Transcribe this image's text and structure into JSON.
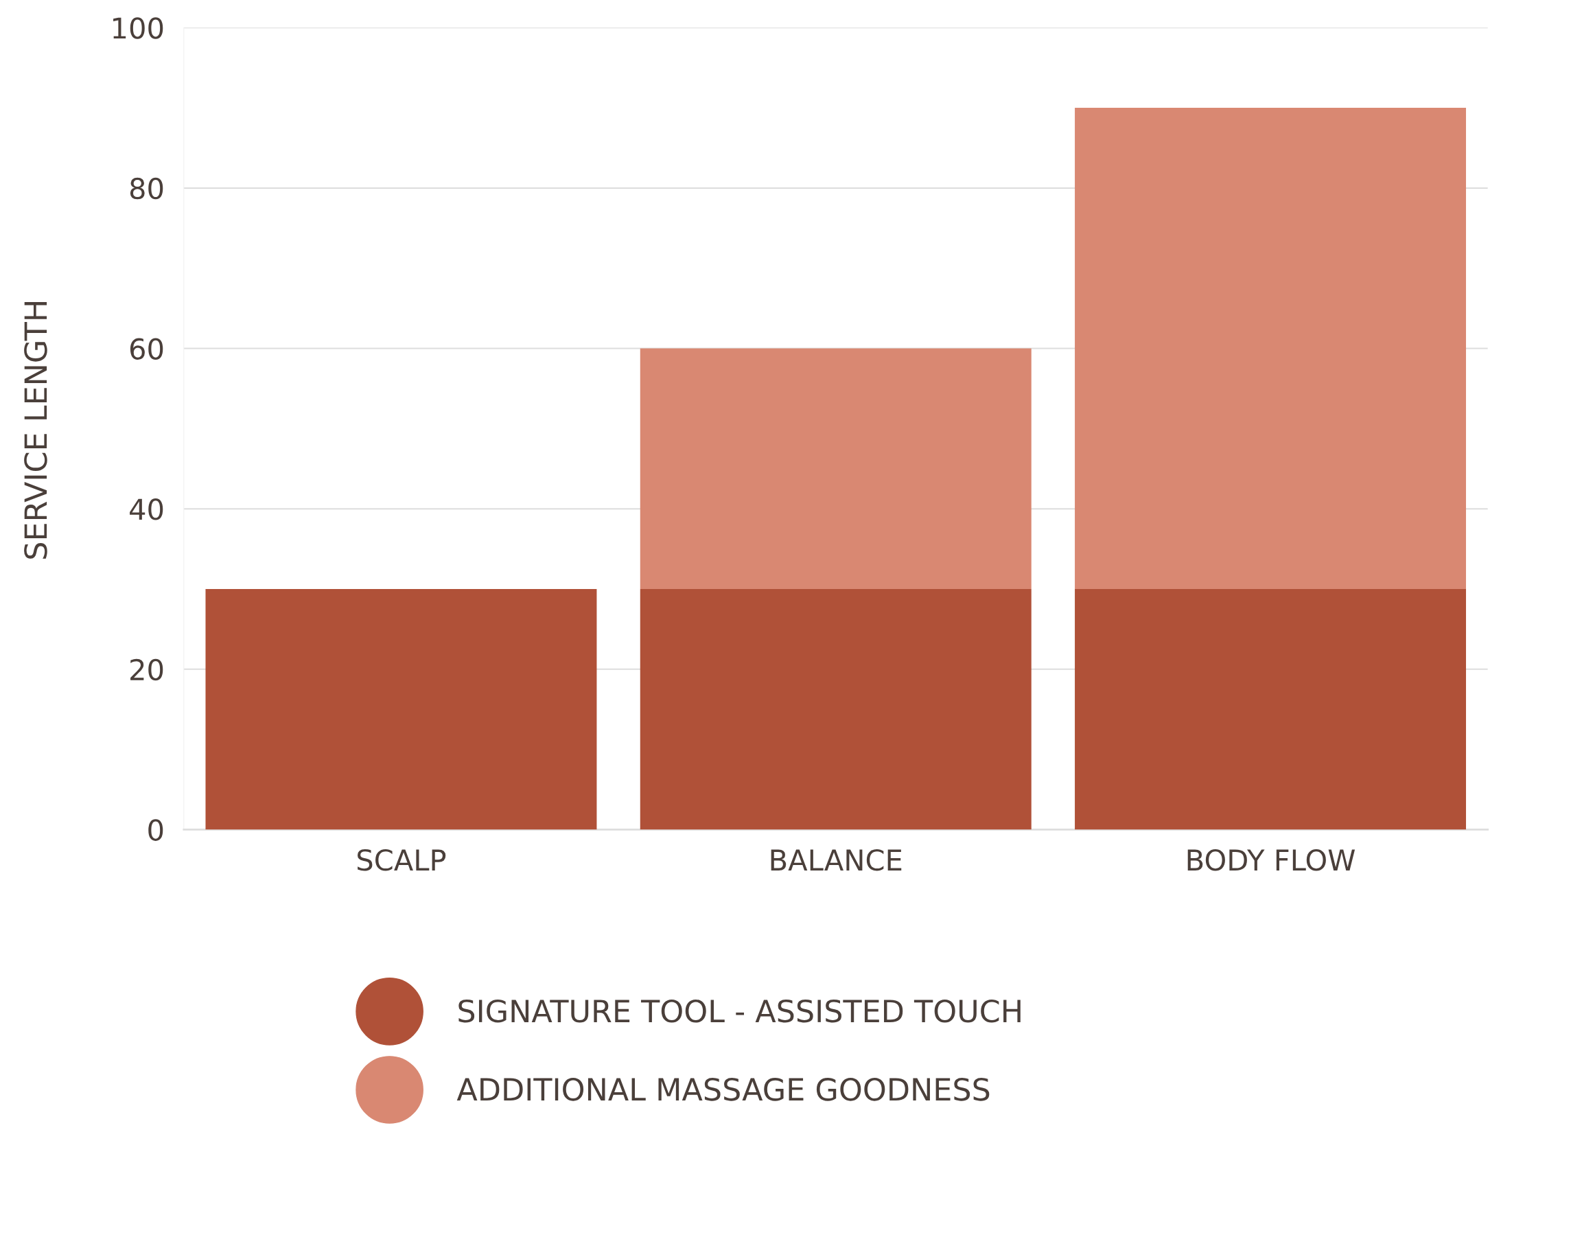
{
  "chart_data": {
    "type": "bar",
    "stacked": true,
    "ylabel": "SERVICE LENGTH",
    "categories": [
      "SCALP",
      "BALANCE",
      "BODY FLOW"
    ],
    "series": [
      {
        "name": "SIGNATURE TOOL - ASSISTED TOUCH",
        "color": "#b05138",
        "values": [
          30,
          30,
          30
        ]
      },
      {
        "name": "ADDITIONAL MASSAGE GOODNESS",
        "color": "#d98872",
        "values": [
          null,
          30,
          60
        ]
      }
    ],
    "ylim": [
      0,
      100
    ],
    "yticks": [
      0,
      20,
      40,
      60,
      80,
      100
    ],
    "grid": "y",
    "legend": "bottom"
  }
}
